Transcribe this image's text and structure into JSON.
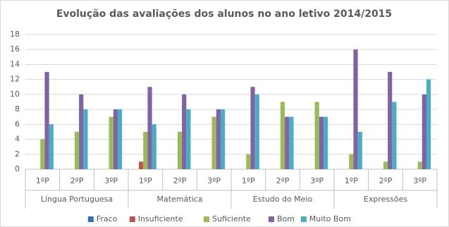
{
  "chart_data": {
    "type": "bar",
    "title": "Evolução das avaliações dos alunos no ano letivo 2014/2015",
    "categories": [
      "1ºP",
      "2ºP",
      "3ºP",
      "1ºP",
      "2ºP",
      "3ºP",
      "1ºP",
      "2ºP",
      "3ºP",
      "1ºP",
      "2ºP",
      "3ºP"
    ],
    "groups": [
      "Língua Portuguesa",
      "Matemática",
      "Estudo do Meio",
      "Expressões"
    ],
    "series": [
      {
        "name": "Fraco",
        "color": "#2e75b6",
        "values": [
          0,
          0,
          0,
          0,
          0,
          0,
          0,
          0,
          0,
          0,
          0,
          0
        ]
      },
      {
        "name": "Insuficiente",
        "color": "#c0504d",
        "values": [
          0,
          0,
          0,
          1,
          0,
          0,
          0,
          0,
          0,
          0,
          0,
          0
        ]
      },
      {
        "name": "Suficiente",
        "color": "#9bbb59",
        "values": [
          4,
          5,
          7,
          5,
          5,
          7,
          2,
          9,
          9,
          2,
          1,
          1
        ]
      },
      {
        "name": "Bom",
        "color": "#8064a2",
        "values": [
          13,
          10,
          8,
          11,
          10,
          8,
          11,
          7,
          7,
          16,
          13,
          10
        ]
      },
      {
        "name": "Muito Bom",
        "color": "#4bacc6",
        "values": [
          6,
          8,
          8,
          6,
          8,
          8,
          10,
          7,
          7,
          5,
          9,
          12
        ]
      }
    ],
    "ylim": [
      0,
      18
    ],
    "yticks": [
      0,
      2,
      4,
      6,
      8,
      10,
      12,
      14,
      16,
      18
    ],
    "grid": true,
    "legend": "bottom"
  }
}
